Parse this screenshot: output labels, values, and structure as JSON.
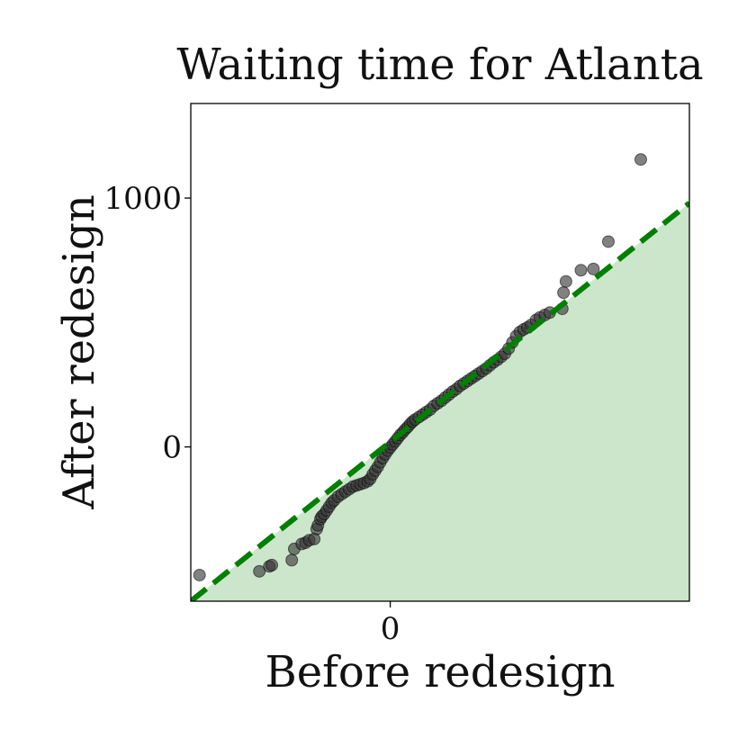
{
  "chart_data": {
    "type": "scatter",
    "title": "Waiting time for Atlanta",
    "xlabel": "Before redesign",
    "ylabel": "After redesign",
    "xlim": [
      -800,
      1200
    ],
    "ylim": [
      -620,
      1380
    ],
    "xticks": [
      0
    ],
    "yticks": [
      0,
      1000
    ],
    "grid": false,
    "legend": "none",
    "reference_line": {
      "from": [
        -800,
        -620
      ],
      "to": [
        1200,
        980
      ],
      "style": "dashed"
    },
    "shaded_region": "below reference line",
    "colors": {
      "points": "#333333",
      "reference_line": "#007f00",
      "shaded_region": "#cce6cc",
      "axes": "#000000"
    },
    "points": [
      {
        "x": -765,
        "y": -515
      },
      {
        "x": -525,
        "y": -500
      },
      {
        "x": -485,
        "y": -480
      },
      {
        "x": -475,
        "y": -475
      },
      {
        "x": -395,
        "y": -455
      },
      {
        "x": -385,
        "y": -410
      },
      {
        "x": -355,
        "y": -390
      },
      {
        "x": -340,
        "y": -385
      },
      {
        "x": -325,
        "y": -375
      },
      {
        "x": -305,
        "y": -370
      },
      {
        "x": -295,
        "y": -330
      },
      {
        "x": -290,
        "y": -315
      },
      {
        "x": -280,
        "y": -290
      },
      {
        "x": -275,
        "y": -280
      },
      {
        "x": -265,
        "y": -270
      },
      {
        "x": -255,
        "y": -255
      },
      {
        "x": -245,
        "y": -240
      },
      {
        "x": -235,
        "y": -225
      },
      {
        "x": -225,
        "y": -215
      },
      {
        "x": -210,
        "y": -200
      },
      {
        "x": -195,
        "y": -190
      },
      {
        "x": -180,
        "y": -180
      },
      {
        "x": -165,
        "y": -170
      },
      {
        "x": -150,
        "y": -160
      },
      {
        "x": -135,
        "y": -155
      },
      {
        "x": -120,
        "y": -150
      },
      {
        "x": -105,
        "y": -145
      },
      {
        "x": -90,
        "y": -138
      },
      {
        "x": -80,
        "y": -128
      },
      {
        "x": -70,
        "y": -110
      },
      {
        "x": -60,
        "y": -95
      },
      {
        "x": -50,
        "y": -80
      },
      {
        "x": -40,
        "y": -62
      },
      {
        "x": -30,
        "y": -45
      },
      {
        "x": -20,
        "y": -30
      },
      {
        "x": -10,
        "y": -15
      },
      {
        "x": 0,
        "y": -2
      },
      {
        "x": 10,
        "y": 10
      },
      {
        "x": 20,
        "y": 22
      },
      {
        "x": 30,
        "y": 35
      },
      {
        "x": 40,
        "y": 48
      },
      {
        "x": 50,
        "y": 58
      },
      {
        "x": 60,
        "y": 70
      },
      {
        "x": 70,
        "y": 80
      },
      {
        "x": 80,
        "y": 92
      },
      {
        "x": 90,
        "y": 102
      },
      {
        "x": 100,
        "y": 110
      },
      {
        "x": 115,
        "y": 120
      },
      {
        "x": 130,
        "y": 130
      },
      {
        "x": 145,
        "y": 140
      },
      {
        "x": 160,
        "y": 150
      },
      {
        "x": 175,
        "y": 165
      },
      {
        "x": 190,
        "y": 175
      },
      {
        "x": 205,
        "y": 185
      },
      {
        "x": 220,
        "y": 198
      },
      {
        "x": 235,
        "y": 210
      },
      {
        "x": 250,
        "y": 222
      },
      {
        "x": 265,
        "y": 232
      },
      {
        "x": 280,
        "y": 245
      },
      {
        "x": 295,
        "y": 255
      },
      {
        "x": 310,
        "y": 265
      },
      {
        "x": 325,
        "y": 275
      },
      {
        "x": 340,
        "y": 285
      },
      {
        "x": 355,
        "y": 295
      },
      {
        "x": 370,
        "y": 305
      },
      {
        "x": 385,
        "y": 315
      },
      {
        "x": 400,
        "y": 328
      },
      {
        "x": 415,
        "y": 340
      },
      {
        "x": 430,
        "y": 350
      },
      {
        "x": 445,
        "y": 362
      },
      {
        "x": 460,
        "y": 375
      },
      {
        "x": 475,
        "y": 395
      },
      {
        "x": 490,
        "y": 420
      },
      {
        "x": 505,
        "y": 445
      },
      {
        "x": 520,
        "y": 462
      },
      {
        "x": 535,
        "y": 472
      },
      {
        "x": 550,
        "y": 480
      },
      {
        "x": 565,
        "y": 490
      },
      {
        "x": 585,
        "y": 510
      },
      {
        "x": 600,
        "y": 520
      },
      {
        "x": 620,
        "y": 530
      },
      {
        "x": 640,
        "y": 540
      },
      {
        "x": 690,
        "y": 555
      },
      {
        "x": 695,
        "y": 620
      },
      {
        "x": 705,
        "y": 665
      },
      {
        "x": 765,
        "y": 710
      },
      {
        "x": 815,
        "y": 715
      },
      {
        "x": 875,
        "y": 825
      },
      {
        "x": 1005,
        "y": 1155
      }
    ]
  }
}
